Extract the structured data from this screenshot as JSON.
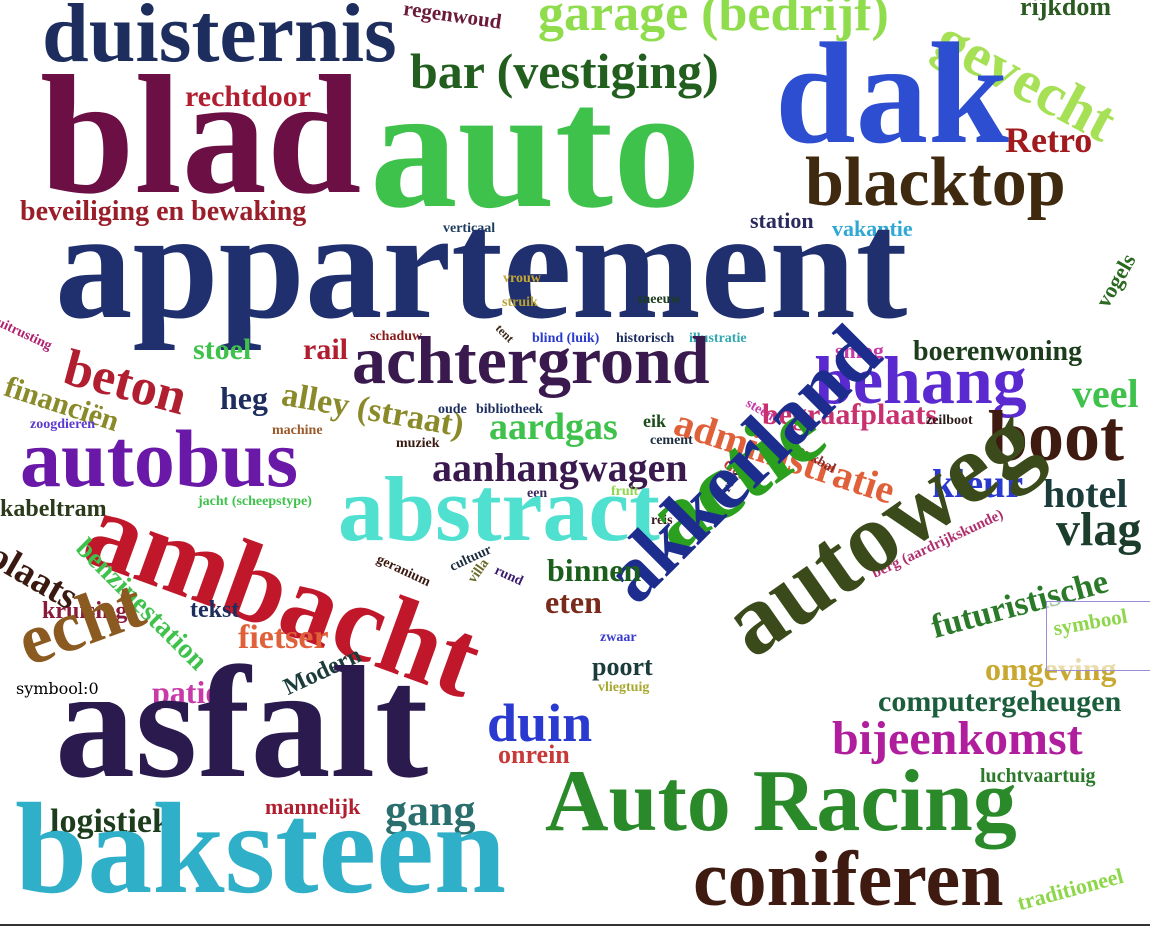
{
  "words": [
    {
      "text": "duisternis",
      "color": "#1c2d5e"
    },
    {
      "text": "regenwoud",
      "color": "#6b1a3a"
    },
    {
      "text": "garage (bedrijf)",
      "color": "#8fdc4c"
    },
    {
      "text": "gevecht",
      "color": "#a6e055"
    },
    {
      "text": "rijkdom",
      "color": "#2a5a20"
    },
    {
      "text": "blad",
      "color": "#6b0f45"
    },
    {
      "text": "bar (vestiging)",
      "color": "#225e1e"
    },
    {
      "text": "dak",
      "color": "#2d4ed0"
    },
    {
      "text": "rechtdoor",
      "color": "#b01e30"
    },
    {
      "text": "auto",
      "color": "#3fc24c"
    },
    {
      "text": "Retro",
      "color": "#a01a1e"
    },
    {
      "text": "blacktop",
      "color": "#3f2a10"
    },
    {
      "text": "beveiliging en bewaking",
      "color": "#9a1e2a"
    },
    {
      "text": "station",
      "color": "#2a2a5e"
    },
    {
      "text": "vakantie",
      "color": "#2fa8d6"
    },
    {
      "text": "verticaal",
      "color": "#1c3c5e"
    },
    {
      "text": "appartement",
      "color": "#20306e"
    },
    {
      "text": "vrouw",
      "color": "#c8a830"
    },
    {
      "text": "sneeuw",
      "color": "#1c3c1c"
    },
    {
      "text": "struik",
      "color": "#b8a030"
    },
    {
      "text": "vogels",
      "color": "#2a6a20"
    },
    {
      "text": "uitrusting",
      "color": "#b01e6e"
    },
    {
      "text": "schaduw",
      "color": "#8a1a1a"
    },
    {
      "text": "tent",
      "color": "#3a2a1a"
    },
    {
      "text": "blind (luik)",
      "color": "#2a3ad0"
    },
    {
      "text": "historisch",
      "color": "#1c2d5e"
    },
    {
      "text": "illustratie",
      "color": "#2fa8b0"
    },
    {
      "text": "stoel",
      "color": "#3fc24c"
    },
    {
      "text": "rail",
      "color": "#b01e30"
    },
    {
      "text": "achtergrond",
      "color": "#3a1a4e"
    },
    {
      "text": "smog",
      "color": "#c83aa8"
    },
    {
      "text": "boerenwoning",
      "color": "#1c3c1c"
    },
    {
      "text": "beton",
      "color": "#b01e30"
    },
    {
      "text": "behang",
      "color": "#5a2ad0"
    },
    {
      "text": "financiën",
      "color": "#8a8a2a"
    },
    {
      "text": "heg",
      "color": "#1c2d5e"
    },
    {
      "text": "alley (straat)",
      "color": "#8a8a2a"
    },
    {
      "text": "veel",
      "color": "#3fc24c"
    },
    {
      "text": "oude",
      "color": "#1c2d5e"
    },
    {
      "text": "bibliotheek",
      "color": "#1c2d5e"
    },
    {
      "text": "steen",
      "color": "#c83aa8"
    },
    {
      "text": "begraafplaats",
      "color": "#c8306e"
    },
    {
      "text": "zeilboot",
      "color": "#2a1a1a"
    },
    {
      "text": "zoogdieren",
      "color": "#5a3ad0"
    },
    {
      "text": "machine",
      "color": "#9a5a2a"
    },
    {
      "text": "aardgas",
      "color": "#3fc24c"
    },
    {
      "text": "eik",
      "color": "#1c4c1c"
    },
    {
      "text": "administratie",
      "color": "#e0603a"
    },
    {
      "text": "boot",
      "color": "#3f1a10"
    },
    {
      "text": "autobus",
      "color": "#6a18a8"
    },
    {
      "text": "muziek",
      "color": "#3a1a10"
    },
    {
      "text": "cement",
      "color": "#1c2d3e"
    },
    {
      "text": "honkbal",
      "color": "#8a2a2a"
    },
    {
      "text": "aanhangwagen",
      "color": "#3a1a4e"
    },
    {
      "text": "Gotisch",
      "color": "#c83a3a"
    },
    {
      "text": "kleur",
      "color": "#2a3ad0"
    },
    {
      "text": "hotel",
      "color": "#1c3c3c"
    },
    {
      "text": "jacht (scheepstype)",
      "color": "#3fc24c"
    },
    {
      "text": "een",
      "color": "#3a2a5e"
    },
    {
      "text": "fruit",
      "color": "#8ed64a"
    },
    {
      "text": "ruw",
      "color": "#2a2a5e"
    },
    {
      "text": "kabeltram",
      "color": "#2a3a1a"
    },
    {
      "text": "abstract",
      "color": "#4fe0d0"
    },
    {
      "text": "reis",
      "color": "#3a1a1a"
    },
    {
      "text": "ambacht",
      "color": "#c0182a"
    },
    {
      "text": "actie",
      "color": "#2aa01e"
    },
    {
      "text": "akkerland",
      "color": "#1c2d8e"
    },
    {
      "text": "vlag",
      "color": "#1c3c2c"
    },
    {
      "text": "plaats",
      "color": "#3a1a10"
    },
    {
      "text": "benzinestation",
      "color": "#3fc24c"
    },
    {
      "text": "geranium",
      "color": "#3a1a10"
    },
    {
      "text": "cultuur",
      "color": "#1c2d3e"
    },
    {
      "text": "villa",
      "color": "#6a6a2a"
    },
    {
      "text": "rund",
      "color": "#3a1a6e"
    },
    {
      "text": "binnen",
      "color": "#1c5e1c"
    },
    {
      "text": "berg (aardrijkskunde)",
      "color": "#b0306e"
    },
    {
      "text": "autoweg",
      "color": "#3a4a1a"
    },
    {
      "text": "futuristische",
      "color": "#2a7a2a"
    },
    {
      "text": "kruising",
      "color": "#8a1a3a"
    },
    {
      "text": "tekst",
      "color": "#1c2d5e"
    },
    {
      "text": "eten",
      "color": "#7a2a1a"
    },
    {
      "text": "zwaar",
      "color": "#3a3ad0"
    },
    {
      "text": "echt",
      "color": "#8a5a20"
    },
    {
      "text": "fietser",
      "color": "#e0603a"
    },
    {
      "text": "poort",
      "color": "#1c3c3c"
    },
    {
      "text": "omgeving",
      "color": "#c8a830"
    },
    {
      "text": "patio",
      "color": "#c83aa8"
    },
    {
      "text": "Modern",
      "color": "#1c3c3c"
    },
    {
      "text": "vliegtuig",
      "color": "#a8a830"
    },
    {
      "text": "computergeheugen",
      "color": "#1c5e3c"
    },
    {
      "text": "asfalt",
      "color": "#2a1a4e"
    },
    {
      "text": "duin",
      "color": "#2a3ad0"
    },
    {
      "text": "bijeenkomst",
      "color": "#b01e9e"
    },
    {
      "text": "onrein",
      "color": "#c83a3a"
    },
    {
      "text": "luchtvaartuig",
      "color": "#2a7a2a"
    },
    {
      "text": "mannelijk",
      "color": "#b01e30"
    },
    {
      "text": "gang",
      "color": "#2a6e6e"
    },
    {
      "text": "Auto Racing",
      "color": "#2a8a2a"
    },
    {
      "text": "logistiek",
      "color": "#1c3c1c"
    },
    {
      "text": "baksteen",
      "color": "#30b0c8"
    },
    {
      "text": "coniferen",
      "color": "#3f1a10"
    },
    {
      "text": "traditioneel",
      "color": "#8ed64a"
    }
  ],
  "tooltip": {
    "hovered_word": "symbool",
    "hovered_color": "#8ed64a",
    "text": "symbool:0"
  }
}
